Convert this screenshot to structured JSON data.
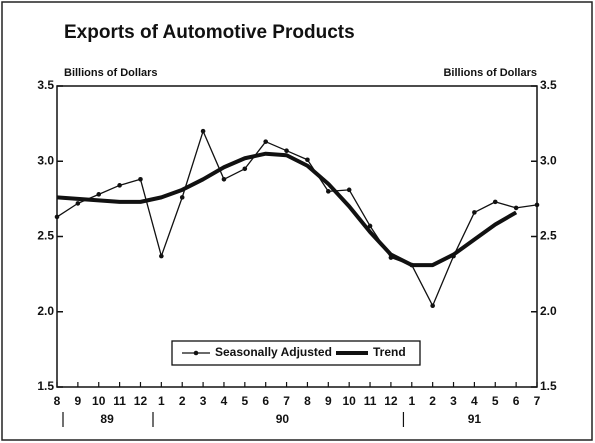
{
  "chart_data": {
    "type": "line",
    "title": "Exports of Automotive Products",
    "ylabel": "Billions of Dollars",
    "y2label": "Billions of Dollars",
    "categories": [
      "8",
      "9",
      "10",
      "11",
      "12",
      "1",
      "2",
      "3",
      "4",
      "5",
      "6",
      "7",
      "8",
      "9",
      "10",
      "11",
      "12",
      "1",
      "2",
      "3",
      "4",
      "5",
      "6",
      "7"
    ],
    "year_labels": [
      "89",
      "90",
      "91"
    ],
    "series": [
      {
        "name": "Seasonally Adjusted",
        "color": "#111111",
        "values": [
          2.63,
          2.72,
          2.78,
          2.84,
          2.88,
          2.37,
          2.76,
          3.2,
          2.88,
          2.95,
          3.13,
          3.07,
          3.01,
          2.8,
          2.81,
          2.57,
          2.36,
          2.31,
          2.04,
          2.37,
          2.66,
          2.73,
          2.69,
          2.71
        ]
      },
      {
        "name": "Trend",
        "color": "#111111",
        "values": [
          2.76,
          2.75,
          2.74,
          2.73,
          2.73,
          2.76,
          2.81,
          2.88,
          2.96,
          3.02,
          3.05,
          3.04,
          2.97,
          2.85,
          2.7,
          2.53,
          2.38,
          2.31,
          2.31,
          2.38,
          2.48,
          2.58,
          2.66,
          null
        ]
      }
    ],
    "ylim": [
      1.5,
      3.5
    ],
    "yticks": [
      1.5,
      {
        "value": 2,
        "label": "2.0"
      },
      2.5,
      {
        "value": 3,
        "label": "3.0"
      },
      3.5
    ],
    "y2lim": [
      1.5,
      3.5
    ],
    "y2ticks": [
      1.5,
      {
        "value": 2,
        "label": "2.0"
      },
      2.5,
      {
        "value": 3,
        "label": "3.0"
      },
      3.5
    ],
    "legend": "bottom",
    "grid": false
  }
}
